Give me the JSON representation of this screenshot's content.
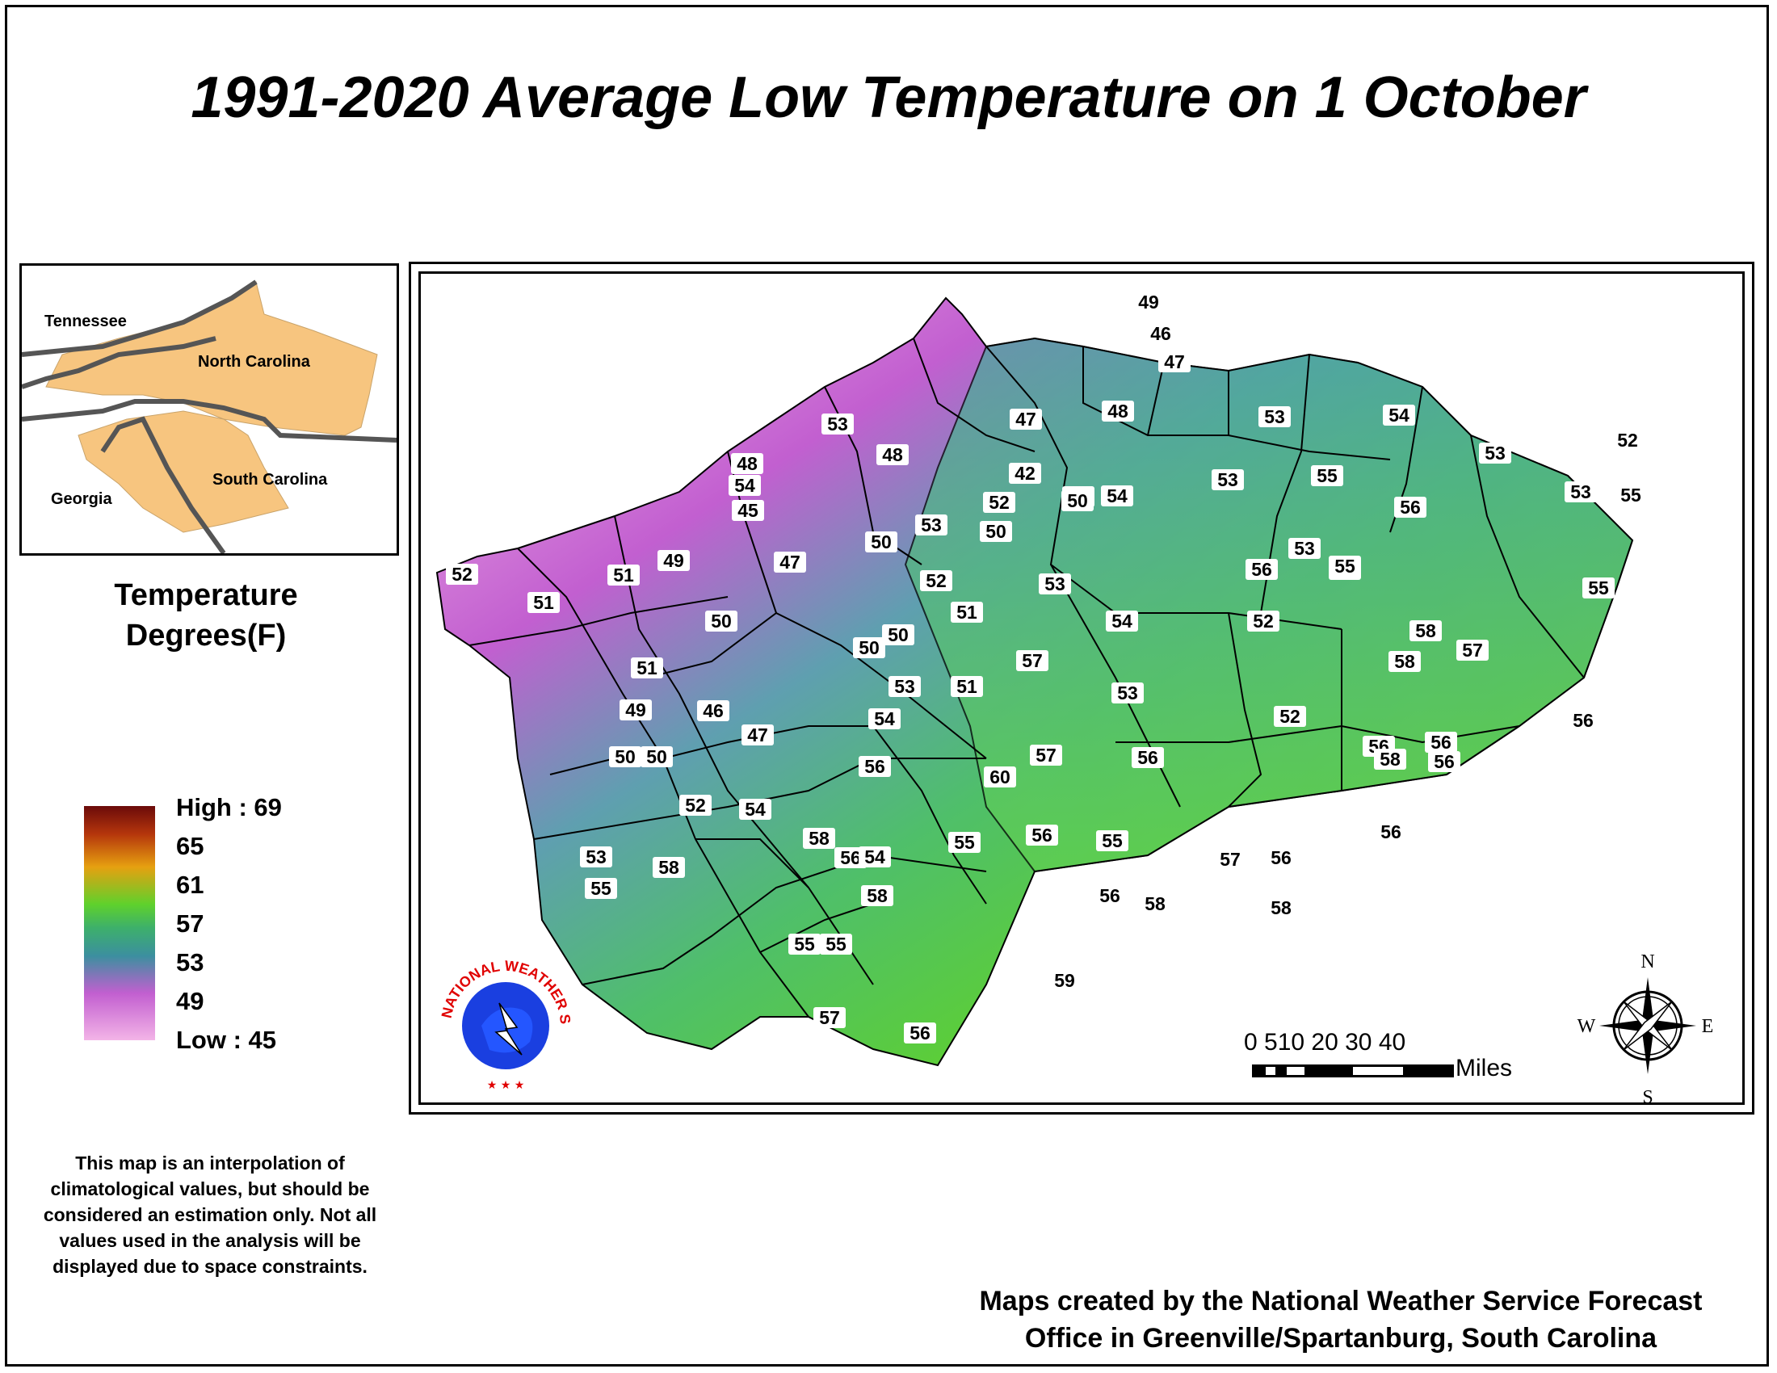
{
  "title": "1991-2020 Average Low Temperature on 1 October",
  "inset_map": {
    "labels": [
      "Tennessee",
      "North Carolina",
      "Georgia",
      "South Carolina"
    ]
  },
  "legend": {
    "title_line1": "Temperature",
    "title_line2": "Degrees(F)",
    "ticks": [
      "High : 69",
      "65",
      "61",
      "57",
      "53",
      "49",
      "Low : 45"
    ],
    "colors": [
      "#6b0a0a",
      "#b5360c",
      "#e6a010",
      "#5fd12c",
      "#3db06b",
      "#3c8f9f",
      "#c25fd0",
      "#f3b4e7"
    ]
  },
  "note": "This map is an interpolation of climatological values, but should be considered an estimation only. Not all values used in the analysis will be displayed due to space constraints.",
  "credit": {
    "line1": "Maps created by the National Weather Service Forecast",
    "line2": "Office in Greenville/Spartanburg, South Carolina"
  },
  "scale_bar": {
    "numbers": "0 510   20   30   40",
    "unit": "Miles"
  },
  "compass": {
    "n": "N",
    "s": "S",
    "e": "E",
    "w": "W"
  },
  "logo_text": "NATIONAL WEATHER SERVICE",
  "map_values": [
    "49",
    "46",
    "47",
    "48",
    "53",
    "54",
    "48",
    "47",
    "42",
    "53",
    "53",
    "55",
    "54",
    "56",
    "53",
    "52",
    "53",
    "55",
    "48",
    "45",
    "54",
    "52",
    "50",
    "53",
    "50",
    "50",
    "54",
    "53",
    "55",
    "56",
    "52",
    "51",
    "51",
    "49",
    "47",
    "52",
    "51",
    "53",
    "54",
    "52",
    "58",
    "55",
    "58",
    "57",
    "55",
    "50",
    "50",
    "50",
    "51",
    "53",
    "57",
    "53",
    "52",
    "56",
    "56",
    "51",
    "49",
    "46",
    "47",
    "54",
    "56",
    "60",
    "57",
    "56",
    "58",
    "56",
    "56",
    "50",
    "50",
    "52",
    "54",
    "58",
    "56",
    "54",
    "55",
    "56",
    "55",
    "56",
    "56",
    "53",
    "55",
    "58",
    "58",
    "55",
    "56",
    "57",
    "58",
    "58",
    "55",
    "57",
    "56",
    "59"
  ]
}
